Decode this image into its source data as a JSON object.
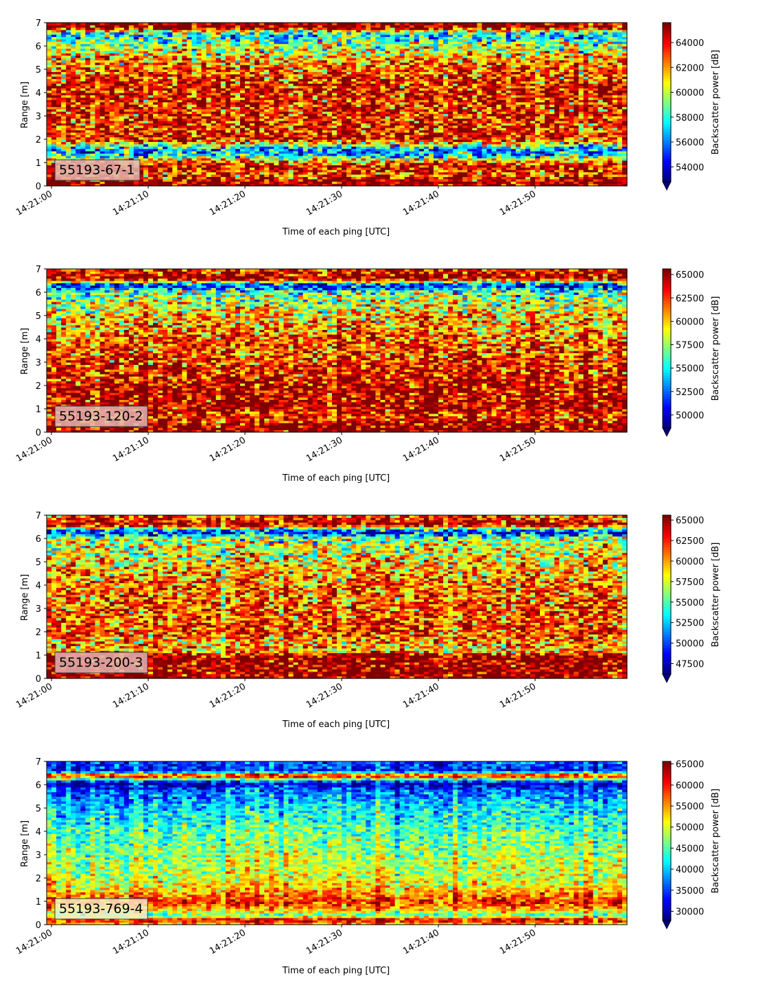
{
  "figure": {
    "panels": [
      {
        "id": "55193-67-1",
        "label": "55193-67-1",
        "xlabel": "Time of each ping [UTC]",
        "ylabel": "Range [m]",
        "cbar_label": "Backscatter power [dB]",
        "cbar_range": [
          52800,
          65600
        ],
        "cbar_ticks": [
          "54000",
          "56000",
          "58000",
          "60000",
          "62000",
          "64000"
        ],
        "label_box_color": "#e3b5b3"
      },
      {
        "id": "55193-120-2",
        "label": "55193-120-2",
        "xlabel": "Time of each ping [UTC]",
        "ylabel": "Range [m]",
        "cbar_label": "Backscatter power [dB]",
        "cbar_range": [
          48600,
          65600
        ],
        "cbar_ticks": [
          "50000",
          "52500",
          "55000",
          "57500",
          "60000",
          "62500",
          "65000"
        ],
        "label_box_color": "#e3b5b3"
      },
      {
        "id": "55193-200-3",
        "label": "55193-200-3",
        "xlabel": "Time of each ping [UTC]",
        "ylabel": "Range [m]",
        "cbar_label": "Backscatter power [dB]",
        "cbar_range": [
          46200,
          65600
        ],
        "cbar_ticks": [
          "47500",
          "50000",
          "52500",
          "55000",
          "57500",
          "60000",
          "62500",
          "65000"
        ],
        "label_box_color": "#e3b5b3"
      },
      {
        "id": "55193-769-4",
        "label": "55193-769-4",
        "xlabel": "Time of each ping [UTC]",
        "ylabel": "Range [m]",
        "cbar_label": "Backscatter power [dB]",
        "cbar_range": [
          27800,
          65600
        ],
        "cbar_ticks": [
          "30000",
          "35000",
          "40000",
          "45000",
          "50000",
          "55000",
          "60000",
          "65000"
        ],
        "label_box_color": "#f3efc7"
      }
    ]
  },
  "chart_data": [
    {
      "type": "heatmap",
      "title": "",
      "label": "55193-67-1",
      "xlabel": "Time of each ping [UTC]",
      "ylabel": "Range [m]",
      "x_ticks": [
        "14:21:00",
        "14:21:10",
        "14:21:20",
        "14:21:30",
        "14:21:40",
        "14:21:50"
      ],
      "x_range": [
        "14:20:59.5",
        "14:21:59.5"
      ],
      "y_ticks": [
        0,
        1,
        2,
        3,
        4,
        5,
        6,
        7
      ],
      "ylim": [
        0,
        7
      ],
      "colormap": "jet",
      "colorbar": {
        "label": "Backscatter power [dB]",
        "range": [
          52800,
          65600
        ],
        "ticks": [
          54000,
          56000,
          58000,
          60000,
          62000,
          64000
        ],
        "extend": "min"
      },
      "profile_m_vs_dB": [
        [
          0.2,
          65500
        ],
        [
          0.5,
          63000
        ],
        [
          0.8,
          64500
        ],
        [
          1.1,
          62000
        ],
        [
          1.3,
          57000
        ],
        [
          1.6,
          56500
        ],
        [
          2.0,
          64000
        ],
        [
          3.0,
          63500
        ],
        [
          4.0,
          64000
        ],
        [
          5.0,
          63000
        ],
        [
          6.0,
          60000
        ],
        [
          6.5,
          57000
        ],
        [
          6.8,
          65500
        ],
        [
          7.0,
          65500
        ]
      ]
    },
    {
      "type": "heatmap",
      "title": "",
      "label": "55193-120-2",
      "xlabel": "Time of each ping [UTC]",
      "ylabel": "Range [m]",
      "x_ticks": [
        "14:21:00",
        "14:21:10",
        "14:21:20",
        "14:21:30",
        "14:21:40",
        "14:21:50"
      ],
      "x_range": [
        "14:20:59.5",
        "14:21:59.5"
      ],
      "y_ticks": [
        0,
        1,
        2,
        3,
        4,
        5,
        6,
        7
      ],
      "ylim": [
        0,
        7
      ],
      "colormap": "jet",
      "colorbar": {
        "label": "Backscatter power [dB]",
        "range": [
          48600,
          65600
        ],
        "ticks": [
          50000,
          52500,
          55000,
          57500,
          60000,
          62500,
          65000
        ],
        "extend": "min"
      },
      "profile_m_vs_dB": [
        [
          0.2,
          65500
        ],
        [
          0.5,
          64000
        ],
        [
          0.8,
          63000
        ],
        [
          1.0,
          65000
        ],
        [
          2.0,
          64500
        ],
        [
          3.0,
          63000
        ],
        [
          4.0,
          62000
        ],
        [
          5.0,
          60000
        ],
        [
          6.0,
          57000
        ],
        [
          6.3,
          50000
        ],
        [
          6.6,
          65500
        ],
        [
          6.9,
          64000
        ],
        [
          7.0,
          62000
        ]
      ]
    },
    {
      "type": "heatmap",
      "title": "",
      "label": "55193-200-3",
      "xlabel": "Time of each ping [UTC]",
      "ylabel": "Range [m]",
      "x_ticks": [
        "14:21:00",
        "14:21:10",
        "14:21:20",
        "14:21:30",
        "14:21:40",
        "14:21:50"
      ],
      "x_range": [
        "14:20:59.5",
        "14:21:59.5"
      ],
      "y_ticks": [
        0,
        1,
        2,
        3,
        4,
        5,
        6,
        7
      ],
      "ylim": [
        0,
        7
      ],
      "colormap": "jet",
      "colorbar": {
        "label": "Backscatter power [dB]",
        "range": [
          46200,
          65600
        ],
        "ticks": [
          47500,
          50000,
          52500,
          55000,
          57500,
          60000,
          62500,
          65000
        ],
        "extend": "min"
      },
      "profile_m_vs_dB": [
        [
          0.2,
          65500
        ],
        [
          0.6,
          65000
        ],
        [
          1.0,
          65000
        ],
        [
          1.2,
          59000
        ],
        [
          1.5,
          60000
        ],
        [
          2.0,
          62000
        ],
        [
          3.0,
          61500
        ],
        [
          4.0,
          61000
        ],
        [
          5.0,
          59000
        ],
        [
          6.0,
          56500
        ],
        [
          6.3,
          48500
        ],
        [
          6.6,
          65000
        ],
        [
          7.0,
          61000
        ]
      ]
    },
    {
      "type": "heatmap",
      "title": "",
      "label": "55193-769-4",
      "xlabel": "Time of each ping [UTC]",
      "ylabel": "Range [m]",
      "x_ticks": [
        "14:21:00",
        "14:21:10",
        "14:21:20",
        "14:21:30",
        "14:21:40",
        "14:21:50"
      ],
      "x_range": [
        "14:20:59.5",
        "14:21:59.5"
      ],
      "y_ticks": [
        0,
        1,
        2,
        3,
        4,
        5,
        6,
        7
      ],
      "ylim": [
        0,
        7
      ],
      "colormap": "jet",
      "colorbar": {
        "label": "Backscatter power [dB]",
        "range": [
          27800,
          65600
        ],
        "ticks": [
          30000,
          35000,
          40000,
          45000,
          50000,
          55000,
          60000,
          65000
        ],
        "extend": "min"
      },
      "profile_m_vs_dB": [
        [
          0.1,
          55000
        ],
        [
          0.2,
          65500
        ],
        [
          0.4,
          44000
        ],
        [
          0.7,
          55000
        ],
        [
          1.0,
          60000
        ],
        [
          1.2,
          58000
        ],
        [
          1.5,
          53000
        ],
        [
          2.0,
          50000
        ],
        [
          3.0,
          48000
        ],
        [
          4.0,
          45000
        ],
        [
          5.0,
          41000
        ],
        [
          5.7,
          37000
        ],
        [
          6.1,
          29500
        ],
        [
          6.4,
          64000
        ],
        [
          6.6,
          33000
        ],
        [
          7.0,
          36000
        ]
      ]
    }
  ]
}
